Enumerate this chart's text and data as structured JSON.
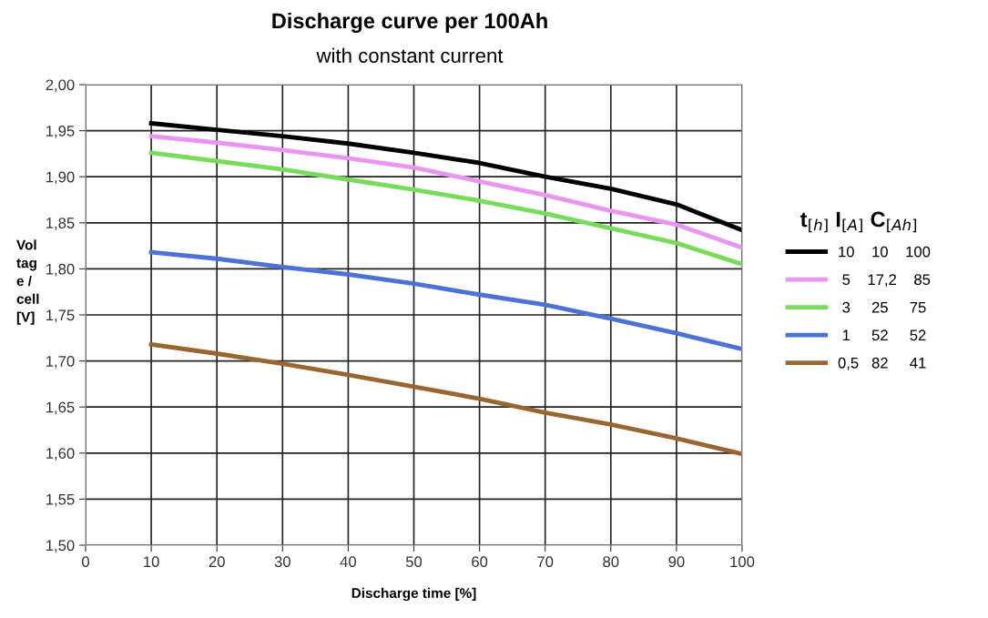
{
  "chart_data": {
    "type": "line",
    "title": "Discharge curve per 100Ah",
    "subtitle": "with constant current",
    "xlabel": "Discharge time [%]",
    "ylabel": "Vol\ntag\ne /\ncell\n[V]",
    "legend_title": "t$_{[h]}$ I$_{[A]}$ C$_{[Ah]}$",
    "x": [
      10,
      20,
      30,
      40,
      50,
      60,
      70,
      80,
      90,
      100
    ],
    "series": [
      {
        "name": "10    10    100",
        "color": "#000000",
        "values": [
          1.958,
          1.951,
          1.944,
          1.936,
          1.926,
          1.915,
          1.9,
          1.887,
          1.87,
          1.842
        ]
      },
      {
        "name": " 5    17,2    85",
        "color": "#e896f0",
        "values": [
          1.944,
          1.937,
          1.929,
          1.92,
          1.91,
          1.895,
          1.88,
          1.863,
          1.848,
          1.823
        ]
      },
      {
        "name": " 3     25     75",
        "color": "#78dc5a",
        "values": [
          1.926,
          1.917,
          1.908,
          1.897,
          1.886,
          1.874,
          1.86,
          1.844,
          1.828,
          1.805
        ]
      },
      {
        "name": " 1     52     52",
        "color": "#4a72d8",
        "values": [
          1.818,
          1.811,
          1.802,
          1.794,
          1.784,
          1.772,
          1.761,
          1.746,
          1.73,
          1.713
        ]
      },
      {
        "name": "0,5   82     41",
        "color": "#9a6630",
        "values": [
          1.718,
          1.708,
          1.697,
          1.685,
          1.672,
          1.659,
          1.644,
          1.631,
          1.616,
          1.599
        ]
      }
    ],
    "xlim": [
      0,
      100
    ],
    "xticks": [
      0,
      10,
      20,
      30,
      40,
      50,
      60,
      70,
      80,
      90,
      100
    ],
    "ylim": [
      1.5,
      2.0
    ],
    "yticks": [
      {
        "value": 1.5,
        "label": "1,50"
      },
      {
        "value": 1.55,
        "label": "1,55"
      },
      {
        "value": 1.6,
        "label": "1,60"
      },
      {
        "value": 1.65,
        "label": "1,65"
      },
      {
        "value": 1.7,
        "label": "1,70"
      },
      {
        "value": 1.75,
        "label": "1,75"
      },
      {
        "value": 1.8,
        "label": "1,80"
      },
      {
        "value": 1.85,
        "label": "1,85"
      },
      {
        "value": 1.9,
        "label": "1,90"
      },
      {
        "value": 1.95,
        "label": "1,95"
      },
      {
        "value": 2.0,
        "label": "2,00"
      }
    ],
    "grid": true,
    "legend": "right",
    "marker": "none",
    "line_style": "solid"
  }
}
